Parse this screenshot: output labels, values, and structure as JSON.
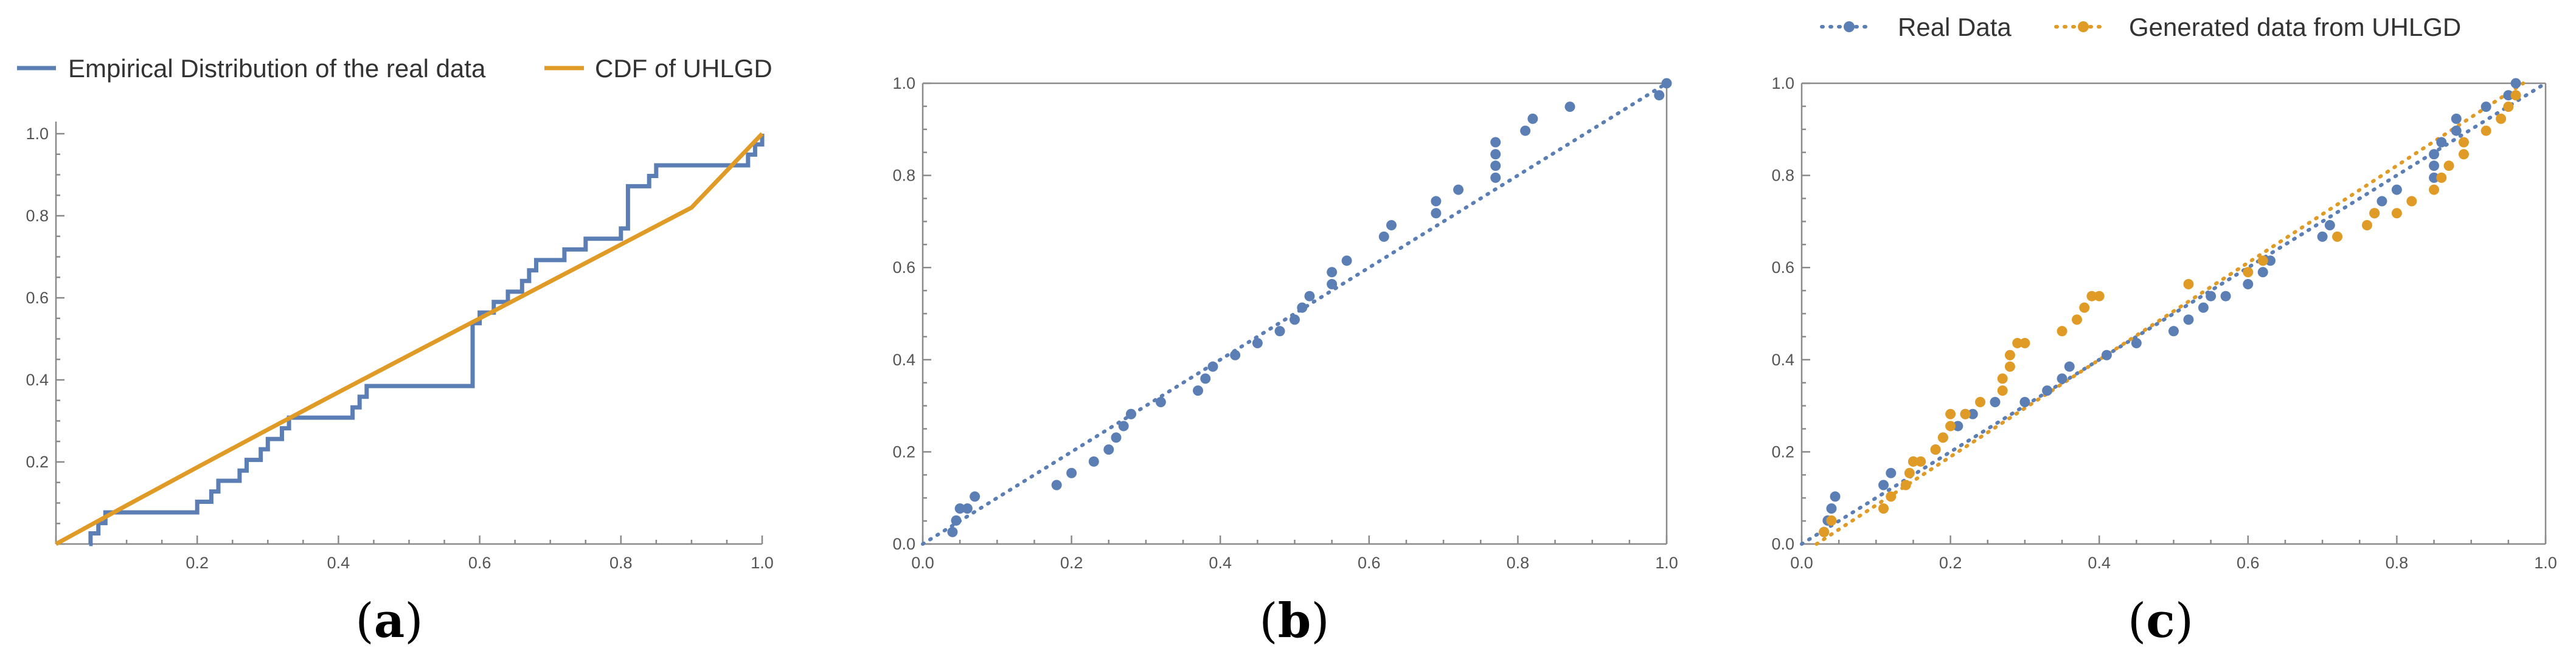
{
  "colors": {
    "real": "#5b7fb5",
    "uhlgd": "#e09b27",
    "axis": "#8a8a8a"
  },
  "chart_data": [
    {
      "panel": "a",
      "caption_letter": "a",
      "type": "line",
      "xlim": [
        0,
        1
      ],
      "ylim": [
        0,
        1
      ],
      "x_ticks": [
        "0.2",
        "0.4",
        "0.6",
        "0.8",
        "1.0"
      ],
      "y_ticks": [
        "0.2",
        "0.4",
        "0.6",
        "0.8",
        "1.0"
      ],
      "legend": [
        "Empirical Distribution of the real data",
        "CDF of UHLGD"
      ],
      "legend_position": "top",
      "series": [
        {
          "name": "Empirical Distribution of the real data",
          "kind": "step",
          "x": [
            0.047,
            0.049,
            0.06,
            0.07,
            0.2,
            0.22,
            0.23,
            0.26,
            0.27,
            0.29,
            0.3,
            0.32,
            0.33,
            0.36,
            0.37,
            0.38,
            0.42,
            0.43,
            0.44,
            0.44,
            0.46,
            0.59,
            0.6,
            0.62,
            0.64,
            0.66,
            0.67,
            0.68,
            0.72,
            0.75,
            0.8,
            0.81,
            0.84,
            0.85,
            0.98,
            0.99,
            1.0
          ],
          "y": [
            0.0,
            0.026,
            0.051,
            0.077,
            0.103,
            0.128,
            0.154,
            0.179,
            0.205,
            0.231,
            0.256,
            0.282,
            0.308,
            0.308,
            0.308,
            0.308,
            0.333,
            0.359,
            0.385,
            0.385,
            0.385,
            0.538,
            0.564,
            0.59,
            0.615,
            0.641,
            0.667,
            0.692,
            0.718,
            0.744,
            0.769,
            0.872,
            0.897,
            0.923,
            0.949,
            0.974,
            1.0
          ]
        },
        {
          "name": "CDF of UHLGD",
          "kind": "line",
          "x": [
            0,
            0.1,
            0.2,
            0.3,
            0.4,
            0.5,
            0.6,
            0.7,
            0.8,
            0.9,
            1.0
          ],
          "y": [
            0,
            0.094,
            0.187,
            0.279,
            0.37,
            0.46,
            0.55,
            0.64,
            0.73,
            0.82,
            1.0
          ]
        }
      ]
    },
    {
      "panel": "b",
      "caption_letter": "b",
      "type": "scatter",
      "xlim": [
        0,
        1
      ],
      "ylim": [
        0,
        1
      ],
      "x_ticks": [
        "0.0",
        "0.2",
        "0.4",
        "0.6",
        "0.8",
        "1.0"
      ],
      "y_ticks": [
        "0.0",
        "0.2",
        "0.4",
        "0.6",
        "0.8",
        "1.0"
      ],
      "reference_line": {
        "x": [
          0,
          1
        ],
        "y": [
          0,
          1
        ]
      },
      "series": [
        {
          "x": [
            0.04,
            0.045,
            0.05,
            0.06,
            0.07,
            0.18,
            0.2,
            0.23,
            0.25,
            0.26,
            0.27,
            0.28,
            0.28,
            0.32,
            0.37,
            0.38,
            0.39,
            0.42,
            0.45,
            0.48,
            0.5,
            0.51,
            0.52,
            0.55,
            0.55,
            0.57,
            0.62,
            0.63,
            0.69,
            0.69,
            0.72,
            0.77,
            0.77,
            0.77,
            0.77,
            0.81,
            0.82,
            0.87,
            0.99,
            1.0
          ],
          "y": [
            0.026,
            0.051,
            0.077,
            0.077,
            0.103,
            0.128,
            0.154,
            0.179,
            0.205,
            0.231,
            0.256,
            0.282,
            0.282,
            0.308,
            0.333,
            0.359,
            0.385,
            0.41,
            0.436,
            0.462,
            0.487,
            0.513,
            0.538,
            0.564,
            0.59,
            0.615,
            0.667,
            0.692,
            0.718,
            0.744,
            0.769,
            0.795,
            0.821,
            0.846,
            0.872,
            0.897,
            0.923,
            0.949,
            0.974,
            1.0
          ]
        }
      ]
    },
    {
      "panel": "c",
      "caption_letter": "c",
      "type": "scatter",
      "xlim": [
        0,
        1
      ],
      "ylim": [
        0,
        1
      ],
      "x_ticks": [
        "0.0",
        "0.2",
        "0.4",
        "0.6",
        "0.8",
        "1.0"
      ],
      "y_ticks": [
        "0.0",
        "0.2",
        "0.4",
        "0.6",
        "0.8",
        "1.0"
      ],
      "legend": [
        "Real Data",
        "Generated data from UHLGD"
      ],
      "legend_position": "top-right",
      "series": [
        {
          "name": "Real Data",
          "x": [
            0.03,
            0.035,
            0.04,
            0.045,
            0.11,
            0.12,
            0.15,
            0.18,
            0.19,
            0.21,
            0.22,
            0.23,
            0.26,
            0.3,
            0.33,
            0.35,
            0.36,
            0.41,
            0.45,
            0.5,
            0.52,
            0.54,
            0.55,
            0.57,
            0.6,
            0.62,
            0.63,
            0.7,
            0.71,
            0.77,
            0.78,
            0.8,
            0.85,
            0.85,
            0.85,
            0.86,
            0.88,
            0.88,
            0.92,
            0.95,
            0.96
          ],
          "y": [
            0.026,
            0.051,
            0.077,
            0.103,
            0.128,
            0.154,
            0.179,
            0.205,
            0.231,
            0.256,
            0.282,
            0.282,
            0.308,
            0.308,
            0.333,
            0.359,
            0.385,
            0.41,
            0.436,
            0.462,
            0.487,
            0.513,
            0.538,
            0.538,
            0.564,
            0.59,
            0.615,
            0.667,
            0.692,
            0.718,
            0.744,
            0.769,
            0.795,
            0.821,
            0.846,
            0.872,
            0.897,
            0.923,
            0.949,
            0.974,
            1.0
          ]
        },
        {
          "name": "Generated data from UHLGD",
          "x": [
            0.03,
            0.04,
            0.11,
            0.12,
            0.14,
            0.145,
            0.15,
            0.16,
            0.18,
            0.19,
            0.2,
            0.2,
            0.22,
            0.24,
            0.27,
            0.27,
            0.28,
            0.28,
            0.29,
            0.3,
            0.35,
            0.37,
            0.38,
            0.39,
            0.4,
            0.52,
            0.6,
            0.62,
            0.72,
            0.76,
            0.77,
            0.8,
            0.82,
            0.85,
            0.86,
            0.87,
            0.89,
            0.89,
            0.92,
            0.94,
            0.95,
            0.96
          ],
          "y": [
            0.026,
            0.051,
            0.077,
            0.103,
            0.128,
            0.154,
            0.179,
            0.179,
            0.205,
            0.231,
            0.256,
            0.282,
            0.282,
            0.308,
            0.333,
            0.359,
            0.385,
            0.41,
            0.436,
            0.436,
            0.462,
            0.487,
            0.513,
            0.538,
            0.538,
            0.564,
            0.59,
            0.615,
            0.667,
            0.692,
            0.718,
            0.718,
            0.744,
            0.769,
            0.795,
            0.821,
            0.846,
            0.872,
            0.897,
            0.923,
            0.949,
            0.974
          ]
        }
      ]
    }
  ]
}
